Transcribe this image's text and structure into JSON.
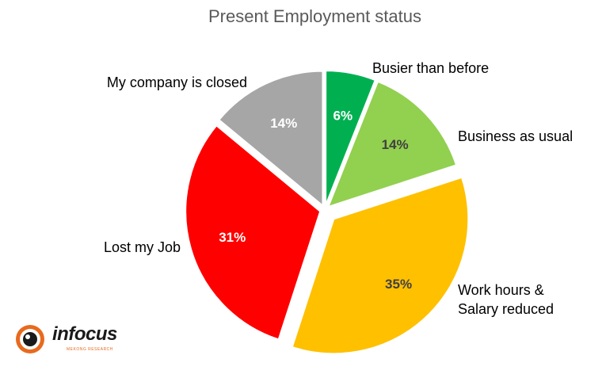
{
  "chart_data": {
    "type": "pie",
    "title": "Present Employment status",
    "slices": [
      {
        "label": "Busier than before",
        "value": 6,
        "value_label": "6%",
        "color": "#00b050",
        "text_color": "#ffffff"
      },
      {
        "label": "Business as usual",
        "value": 14,
        "value_label": "14%",
        "color": "#92d050",
        "text_color": "#404040"
      },
      {
        "label": "Work hours & Salary reduced",
        "value": 35,
        "value_label": "35%",
        "color": "#ffc000",
        "text_color": "#404040",
        "exploded": true
      },
      {
        "label": "Lost my Job",
        "value": 31,
        "value_label": "31%",
        "color": "#ff0000",
        "text_color": "#ffffff"
      },
      {
        "label": "My company is closed",
        "value": 14,
        "value_label": "14%",
        "color": "#a6a6a6",
        "text_color": "#ffffff"
      }
    ],
    "legend": "none"
  },
  "logo": {
    "text": "infocus",
    "subtext": "MEKONG RESEARCH",
    "brand_color": "#e86a1e"
  }
}
